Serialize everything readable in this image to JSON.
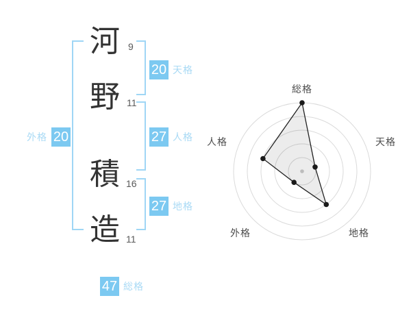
{
  "name": {
    "characters": [
      {
        "char": "河",
        "strokes": "9"
      },
      {
        "char": "野",
        "strokes": "11"
      },
      {
        "char": "積",
        "strokes": "16"
      },
      {
        "char": "造",
        "strokes": "11"
      }
    ]
  },
  "gaku": {
    "tenkaku": {
      "label": "天格",
      "value": "20"
    },
    "jinkaku": {
      "label": "人格",
      "value": "27"
    },
    "chikaku": {
      "label": "地格",
      "value": "27"
    },
    "gaikaku": {
      "label": "外格",
      "value": "20"
    },
    "soukaku": {
      "label": "総格",
      "value": "47"
    }
  },
  "colors": {
    "accent_blue": "#7cc9f1",
    "label_blue": "#a9daf5",
    "bracket_blue": "#9fd6f5",
    "kanji_dark": "#333333",
    "strokes_gray": "#595959",
    "radar_ring": "#dadada",
    "radar_label": "#4d4d4d",
    "radar_line": "#222222",
    "radar_dot": "#1a1a1a",
    "radar_center_dot": "#bdbdbd"
  },
  "chart_data": {
    "type": "radar",
    "title": "",
    "categories": [
      "総格",
      "天格",
      "地格",
      "外格",
      "人格"
    ],
    "axis_scores": [
      47,
      20,
      27,
      20,
      27
    ],
    "radius_percent": [
      100,
      20,
      60,
      20,
      60
    ],
    "max_radius_percent": 100,
    "rings": 5,
    "grid": "concentric-circles",
    "legend": "none",
    "center_marker": true
  }
}
